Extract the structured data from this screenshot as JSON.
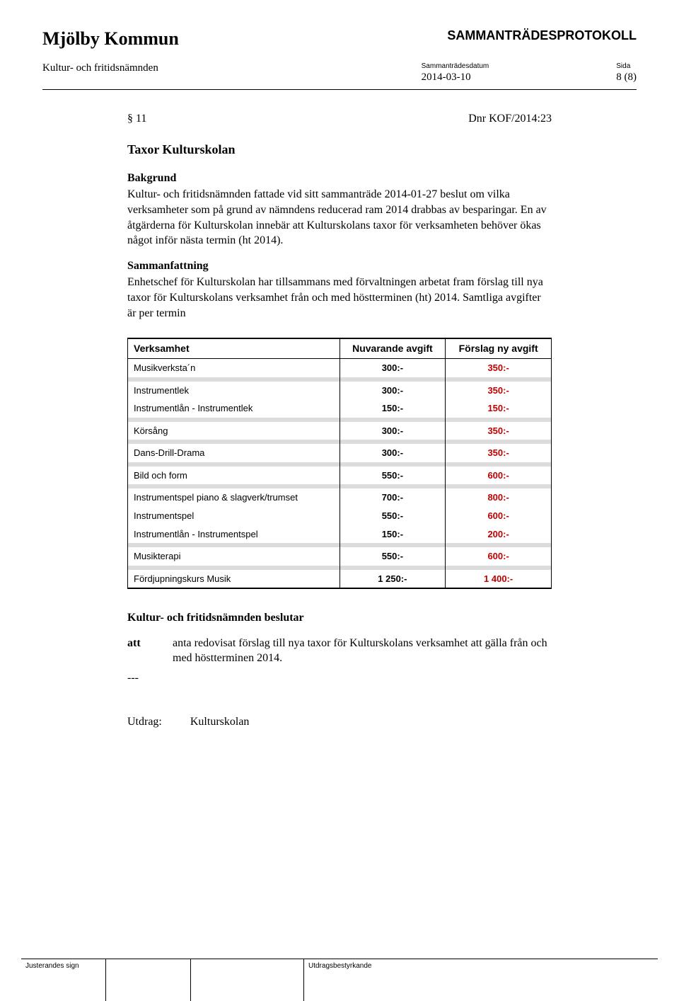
{
  "header": {
    "org_name": "Mjölby Kommun",
    "doc_type": "SAMMANTRÄDESPROTOKOLL",
    "committee": "Kultur- och fritidsnämnden",
    "meta_date_label": "Sammanträdesdatum",
    "meta_date": "2014-03-10",
    "meta_page_label": "Sida",
    "meta_page": "8 (8)"
  },
  "section": {
    "number": "§ 11",
    "dnr": "Dnr KOF/2014:23",
    "title": "Taxor Kulturskolan",
    "bakgrund_label": "Bakgrund",
    "bakgrund_text": "Kultur- och fritidsnämnden fattade vid sitt sammanträde 2014-01-27 beslut om vilka verksamheter som på grund av nämndens reducerad ram 2014 drabbas av besparingar. En av åtgärderna för Kulturskolan innebär att Kulturskolans taxor för verksamheten behöver ökas något inför nästa termin (ht 2014).",
    "sammanfattning_label": "Sammanfattning",
    "sammanfattning_text": "Enhetschef för Kulturskolan har tillsammans med förvaltningen arbetat fram förslag till nya taxor för Kulturskolans verksamhet från och med höstterminen (ht) 2014. Samtliga avgifter är per termin"
  },
  "table": {
    "columns": [
      "Verksamhet",
      "Nuvarande avgift",
      "Förslag ny avgift"
    ],
    "col_widths": [
      "50%",
      "25%",
      "25%"
    ],
    "new_color": "#c00000",
    "spacer_color": "#dcdcdc",
    "groups": [
      [
        {
          "name": "Musikverksta´n",
          "current": "300:-",
          "new": "350:-"
        }
      ],
      [
        {
          "name": "Instrumentlek",
          "current": "300:-",
          "new": "350:-"
        },
        {
          "name": "Instrumentlån - Instrumentlek",
          "current": "150:-",
          "new": "150:-"
        }
      ],
      [
        {
          "name": "Körsång",
          "current": "300:-",
          "new": "350:-"
        }
      ],
      [
        {
          "name": "Dans-Drill-Drama",
          "current": "300:-",
          "new": "350:-"
        }
      ],
      [
        {
          "name": "Bild och form",
          "current": "550:-",
          "new": "600:-"
        }
      ],
      [
        {
          "name": "Instrumentspel piano & slagverk/trumset",
          "current": "700:-",
          "new": "800:-"
        },
        {
          "name": "Instrumentspel",
          "current": "550:-",
          "new": "600:-"
        },
        {
          "name": "Instrumentlån - Instrumentspel",
          "current": "150:-",
          "new": "200:-"
        }
      ],
      [
        {
          "name": "Musikterapi",
          "current": "550:-",
          "new": "600:-"
        }
      ],
      [
        {
          "name": "Fördjupningskurs Musik",
          "current": "1 250:-",
          "new": "1 400:-"
        }
      ]
    ]
  },
  "decision": {
    "heading": "Kultur- och fritidsnämnden beslutar",
    "att_label": "att",
    "att_text": "anta redovisat förslag till nya taxor för Kulturskolans verksamhet att gälla från och med höstterminen 2014.",
    "dash": "---",
    "utdrag_label": "Utdrag:",
    "utdrag_value": "Kulturskolan"
  },
  "footer": {
    "left_label": "Justerandes sign",
    "right_label": "Utdragsbestyrkande"
  }
}
